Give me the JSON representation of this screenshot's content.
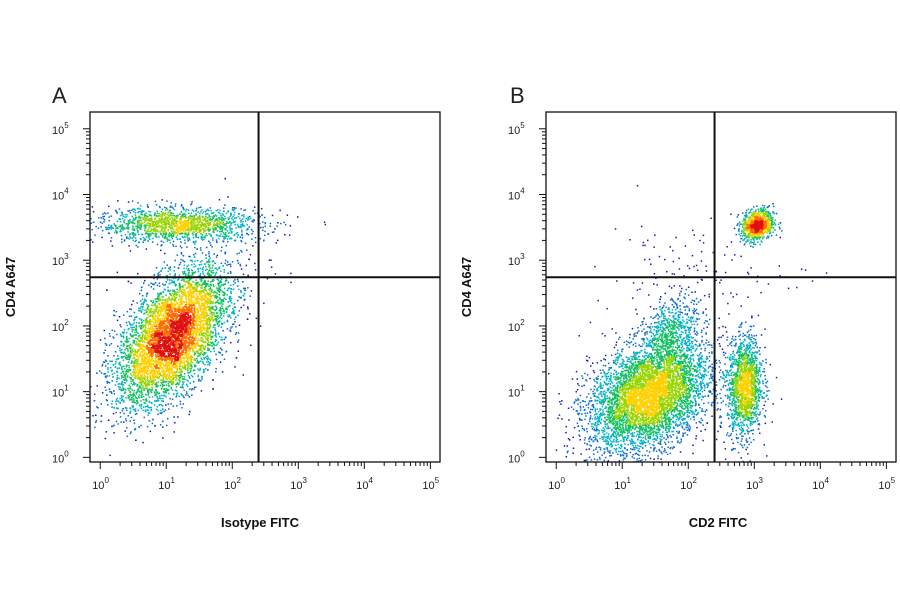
{
  "chart_data": [
    {
      "type": "scatter",
      "panel_label": "A",
      "xlabel": "Isotype FITC",
      "ylabel": "CD4 A647",
      "x_scale": "log",
      "y_scale": "log",
      "xlim": [
        0.7,
        140000
      ],
      "ylim": [
        0.85,
        180000
      ],
      "x_ticks": [
        {
          "base": "10",
          "exp": "0",
          "value": 1
        },
        {
          "base": "10",
          "exp": "1",
          "value": 10
        },
        {
          "base": "10",
          "exp": "2",
          "value": 100
        },
        {
          "base": "10",
          "exp": "3",
          "value": 1000
        },
        {
          "base": "10",
          "exp": "4",
          "value": 10000
        },
        {
          "base": "10",
          "exp": "5",
          "value": 100000
        }
      ],
      "y_ticks": [
        {
          "base": "10",
          "exp": "0",
          "value": 1
        },
        {
          "base": "10",
          "exp": "1",
          "value": 10
        },
        {
          "base": "10",
          "exp": "2",
          "value": 100
        },
        {
          "base": "10",
          "exp": "3",
          "value": 1000
        },
        {
          "base": "10",
          "exp": "4",
          "value": 10000
        },
        {
          "base": "10",
          "exp": "5",
          "value": 100000
        }
      ],
      "gate_x": 250,
      "gate_y": 550,
      "grid": false,
      "density_colormap": [
        "#1a1aa8",
        "#0a6ad0",
        "#00b0c8",
        "#10c060",
        "#9ad400",
        "#ffd000",
        "#ff6a00",
        "#e01010"
      ],
      "populations": [
        {
          "x_center": 15,
          "y_center": 3500,
          "x_spread": 0.62,
          "y_spread": 0.13,
          "correlation": 0.0,
          "events": 1500
        },
        {
          "x_center": 12,
          "y_center": 70,
          "x_spread": 0.42,
          "y_spread": 0.52,
          "correlation": 0.55,
          "events": 6500
        },
        {
          "x_center": 300,
          "y_center": 1200,
          "x_spread": 0.25,
          "y_spread": 0.2,
          "correlation": 0.0,
          "events": 12
        }
      ]
    },
    {
      "type": "scatter",
      "panel_label": "B",
      "xlabel": "CD2 FITC",
      "ylabel": "CD4 A647",
      "x_scale": "log",
      "y_scale": "log",
      "xlim": [
        0.7,
        140000
      ],
      "ylim": [
        0.85,
        180000
      ],
      "x_ticks": [
        {
          "base": "10",
          "exp": "0",
          "value": 1
        },
        {
          "base": "10",
          "exp": "1",
          "value": 10
        },
        {
          "base": "10",
          "exp": "2",
          "value": 100
        },
        {
          "base": "10",
          "exp": "3",
          "value": 1000
        },
        {
          "base": "10",
          "exp": "4",
          "value": 10000
        },
        {
          "base": "10",
          "exp": "5",
          "value": 100000
        }
      ],
      "y_ticks": [
        {
          "base": "10",
          "exp": "0",
          "value": 1
        },
        {
          "base": "10",
          "exp": "1",
          "value": 10
        },
        {
          "base": "10",
          "exp": "2",
          "value": 100
        },
        {
          "base": "10",
          "exp": "3",
          "value": 1000
        },
        {
          "base": "10",
          "exp": "4",
          "value": 10000
        },
        {
          "base": "10",
          "exp": "5",
          "value": 100000
        }
      ],
      "gate_x": 250,
      "gate_y": 550,
      "grid": false,
      "density_colormap": [
        "#1a1aa8",
        "#0a6ad0",
        "#00b0c8",
        "#10c060",
        "#9ad400",
        "#ffd000",
        "#ff6a00",
        "#e01010"
      ],
      "populations": [
        {
          "x_center": 1100,
          "y_center": 3500,
          "x_spread": 0.12,
          "y_spread": 0.12,
          "correlation": 0.2,
          "events": 900
        },
        {
          "x_center": 25,
          "y_center": 9,
          "x_spread": 0.45,
          "y_spread": 0.42,
          "correlation": 0.35,
          "events": 5200
        },
        {
          "x_center": 700,
          "y_center": 12,
          "x_spread": 0.13,
          "y_spread": 0.38,
          "correlation": 0.1,
          "events": 1500
        },
        {
          "x_center": 55,
          "y_center": 90,
          "x_spread": 0.2,
          "y_spread": 0.25,
          "correlation": 0.3,
          "events": 500
        },
        {
          "x_center": 80,
          "y_center": 600,
          "x_spread": 0.55,
          "y_spread": 0.45,
          "correlation": 0.0,
          "events": 110
        },
        {
          "x_center": 3000,
          "y_center": 500,
          "x_spread": 0.35,
          "y_spread": 0.15,
          "correlation": 0.0,
          "events": 12
        }
      ]
    }
  ]
}
